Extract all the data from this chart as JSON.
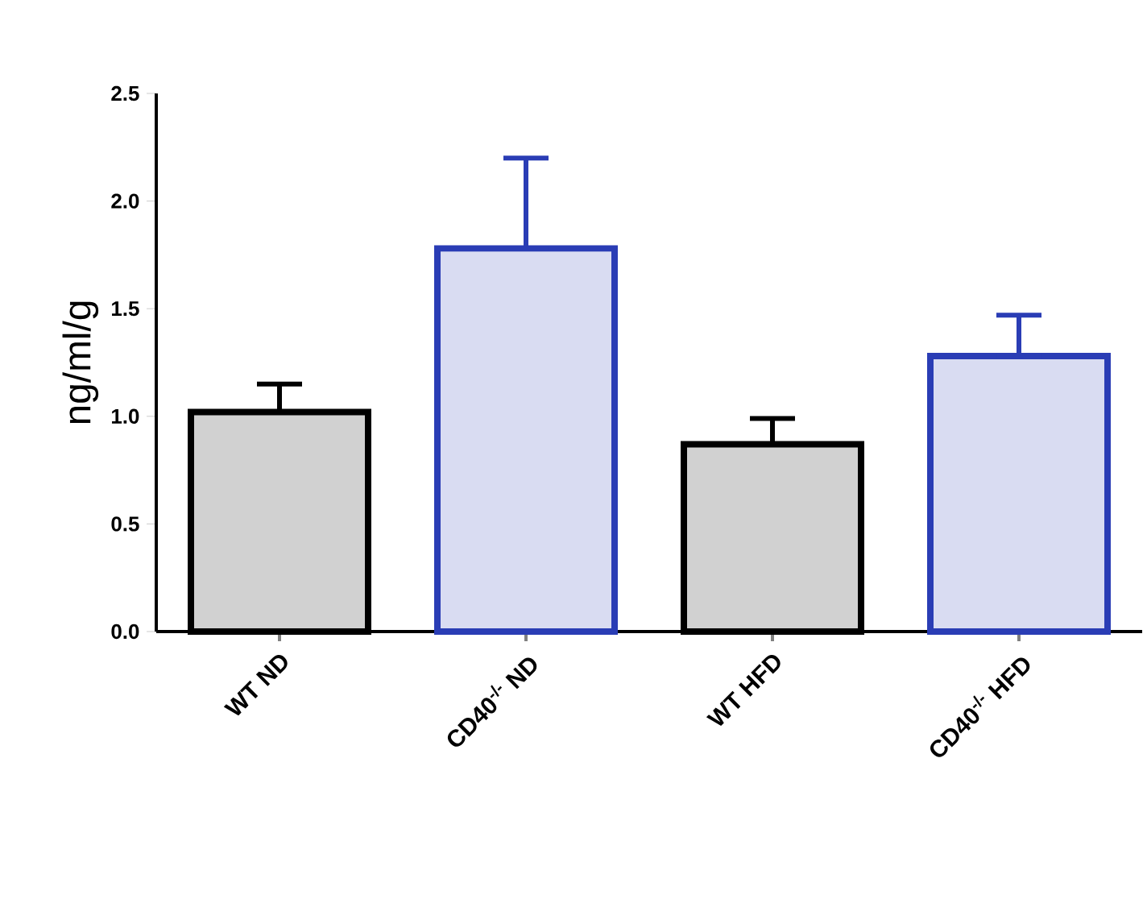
{
  "chart_data": {
    "type": "bar",
    "ylabel": "ng/ml/g",
    "categories": [
      "WT ND",
      "CD40$^{-/-}$ ND",
      "WT HFD",
      "CD40$^{-/-}$ HFD"
    ],
    "values": [
      1.02,
      1.78,
      0.87,
      1.28
    ],
    "errors": [
      [
        1.02,
        1.15
      ],
      [
        1.78,
        2.2
      ],
      [
        0.87,
        0.99
      ],
      [
        1.28,
        1.47
      ]
    ],
    "colors": [
      "#000000",
      "#2a3db5",
      "#000000",
      "#2a3db5"
    ],
    "ylim": [
      0,
      2.5
    ],
    "yticks": [
      {
        "value": 0,
        "label": "0.0"
      },
      {
        "value": 0.5,
        "label": "0.5"
      },
      {
        "value": 1.0,
        "label": "1.0"
      },
      {
        "value": 1.5,
        "label": "1.5"
      },
      {
        "value": 2.0,
        "label": "2.0"
      },
      {
        "value": 2.5,
        "label": "2.5"
      }
    ],
    "grid": false
  }
}
